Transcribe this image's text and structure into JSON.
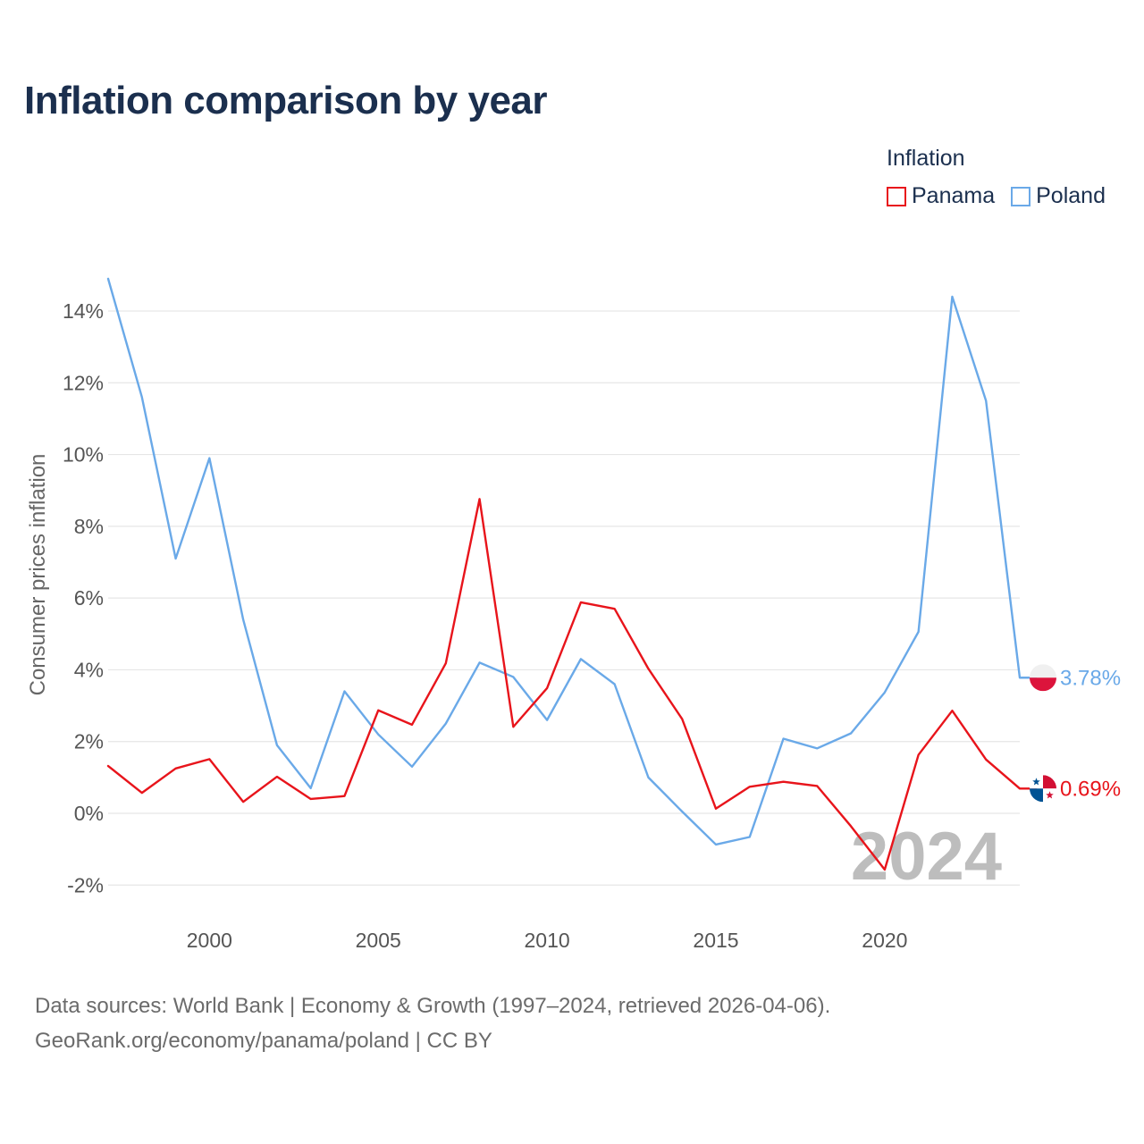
{
  "title": "Inflation comparison by year",
  "legend": {
    "title": "Inflation",
    "items": [
      {
        "label": "Panama",
        "color": "#e8141b"
      },
      {
        "label": "Poland",
        "color": "#6aa9e8"
      }
    ]
  },
  "source": {
    "line1": "Data sources: World Bank | Economy & Growth (1997–2024, retrieved 2026-04-06).",
    "line2": "GeoRank.org/economy/panama/poland | CC BY"
  },
  "chart_data": {
    "type": "line",
    "title": "Inflation comparison by year",
    "xlabel": "",
    "ylabel": "Consumer prices inflation",
    "xlim": [
      1997,
      2024
    ],
    "ylim": [
      -3,
      15
    ],
    "yticks": [
      -2,
      0,
      2,
      4,
      6,
      8,
      10,
      12,
      14
    ],
    "ytick_labels": [
      "-2%",
      "0%",
      "2%",
      "4%",
      "6%",
      "8%",
      "10%",
      "12%",
      "14%"
    ],
    "xticks": [
      2000,
      2005,
      2010,
      2015,
      2020
    ],
    "xtick_labels": [
      "2000",
      "2005",
      "2010",
      "2015",
      "2020"
    ],
    "grid": true,
    "legend_position": "top-right",
    "watermark": "2024",
    "x": [
      1997,
      1998,
      1999,
      2000,
      2001,
      2002,
      2003,
      2004,
      2005,
      2006,
      2007,
      2008,
      2009,
      2010,
      2011,
      2012,
      2013,
      2014,
      2015,
      2016,
      2017,
      2018,
      2019,
      2020,
      2021,
      2022,
      2023,
      2024
    ],
    "series": [
      {
        "name": "Panama",
        "color": "#e8141b",
        "end_label": "0.69%",
        "values": [
          1.32,
          0.57,
          1.25,
          1.51,
          0.32,
          1.02,
          0.4,
          0.48,
          2.87,
          2.47,
          4.18,
          8.76,
          2.41,
          3.49,
          5.88,
          5.7,
          4.03,
          2.63,
          0.13,
          0.74,
          0.88,
          0.76,
          -0.36,
          -1.57,
          1.63,
          2.86,
          1.5,
          0.69
        ]
      },
      {
        "name": "Poland",
        "color": "#6aa9e8",
        "end_label": "3.78%",
        "values": [
          14.9,
          11.6,
          7.1,
          9.9,
          5.4,
          1.9,
          0.7,
          3.4,
          2.2,
          1.3,
          2.5,
          4.2,
          3.8,
          2.6,
          4.3,
          3.6,
          1.0,
          0.05,
          -0.87,
          -0.66,
          2.08,
          1.81,
          2.23,
          3.37,
          5.06,
          14.4,
          11.5,
          3.78
        ]
      }
    ]
  }
}
